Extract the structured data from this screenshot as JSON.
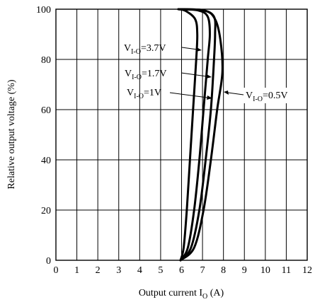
{
  "chart_data": {
    "type": "line",
    "xlabel": "Output current I",
    "xlabel_sub": "O",
    "xlabel_unit": " (A)",
    "ylabel": "Relative output voltage (%)",
    "xlim": [
      0,
      12
    ],
    "ylim": [
      0,
      100
    ],
    "x_ticks": [
      0,
      1,
      2,
      3,
      4,
      5,
      6,
      7,
      8,
      9,
      10,
      11,
      12
    ],
    "y_ticks": [
      0,
      20,
      40,
      60,
      80,
      100
    ],
    "x_tick_labels": [
      "0",
      "1",
      "2",
      "3",
      "4",
      "5",
      "6",
      "7",
      "8",
      "9",
      "10",
      "11",
      "12"
    ],
    "y_tick_labels": [
      "0",
      "20",
      "40",
      "60",
      "80",
      "100"
    ],
    "grid": true,
    "series": [
      {
        "label_main": "V",
        "label_sub": "I-O",
        "label_value": "=3.7V",
        "points": [
          [
            5.95,
            0
          ],
          [
            6.1,
            5
          ],
          [
            6.25,
            20
          ],
          [
            6.4,
            40
          ],
          [
            6.55,
            60
          ],
          [
            6.7,
            80
          ],
          [
            6.75,
            90
          ],
          [
            6.65,
            96
          ],
          [
            6.2,
            99.3
          ],
          [
            5.85,
            100
          ]
        ]
      },
      {
        "label_main": "V",
        "label_sub": "I-O",
        "label_value": "=1.7V",
        "points": [
          [
            5.95,
            0
          ],
          [
            6.3,
            5
          ],
          [
            6.6,
            20
          ],
          [
            6.85,
            40
          ],
          [
            7.05,
            60
          ],
          [
            7.25,
            80
          ],
          [
            7.35,
            90
          ],
          [
            7.25,
            97
          ],
          [
            6.8,
            99.5
          ],
          [
            5.85,
            100
          ]
        ]
      },
      {
        "label_main": "V",
        "label_sub": "I-O",
        "label_value": "=1V",
        "points": [
          [
            5.95,
            0
          ],
          [
            6.45,
            5
          ],
          [
            6.85,
            20
          ],
          [
            7.15,
            40
          ],
          [
            7.4,
            60
          ],
          [
            7.55,
            80
          ],
          [
            7.6,
            90
          ],
          [
            7.55,
            97
          ],
          [
            7.0,
            99.6
          ],
          [
            5.85,
            100
          ]
        ]
      },
      {
        "label_main": "V",
        "label_sub": "I-O",
        "label_value": "=0.5V",
        "points": [
          [
            5.95,
            0
          ],
          [
            6.6,
            5
          ],
          [
            7.05,
            20
          ],
          [
            7.4,
            40
          ],
          [
            7.7,
            60
          ],
          [
            7.95,
            75
          ],
          [
            7.85,
            88
          ],
          [
            7.6,
            96
          ],
          [
            7.1,
            99.5
          ],
          [
            5.85,
            100
          ]
        ]
      }
    ]
  }
}
